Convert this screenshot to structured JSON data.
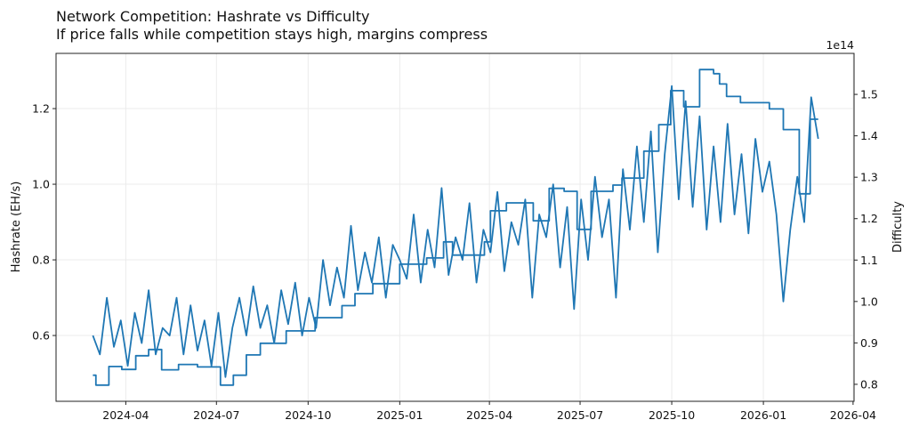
{
  "chart_data": {
    "type": "line",
    "title": "Network Competition: Hashrate vs Difficulty",
    "subtitle": "If price falls while competition stays high, margins compress",
    "xlabel": "",
    "ylabel": "Hashrate (EH/s)",
    "y2label": "Difficulty",
    "y2_offset_text": "1e14",
    "xlim": [
      "2024-01-22",
      "2026-04-02"
    ],
    "ylim": [
      0.426,
      1.346
    ],
    "y2lim": [
      0.759,
      1.599
    ],
    "grid": true,
    "color": "#1f77b4",
    "x_ticks": [
      "2024-04",
      "2024-07",
      "2024-10",
      "2025-01",
      "2025-04",
      "2025-07",
      "2025-10",
      "2026-01",
      "2026-04"
    ],
    "y_ticks": [
      "0.6",
      "0.8",
      "1.0",
      "1.2"
    ],
    "y2_ticks": [
      "0.8",
      "0.9",
      "1.0",
      "1.1",
      "1.2",
      "1.3",
      "1.4",
      "1.5"
    ],
    "series": [
      {
        "axis": "left",
        "style": "line",
        "x": [
          "2024-02-28",
          "2024-03-06",
          "2024-03-13",
          "2024-03-20",
          "2024-03-27",
          "2024-04-03",
          "2024-04-10",
          "2024-04-17",
          "2024-04-24",
          "2024-05-01",
          "2024-05-08",
          "2024-05-15",
          "2024-05-22",
          "2024-05-29",
          "2024-06-05",
          "2024-06-12",
          "2024-06-19",
          "2024-06-26",
          "2024-07-03",
          "2024-07-10",
          "2024-07-17",
          "2024-07-24",
          "2024-07-31",
          "2024-08-07",
          "2024-08-14",
          "2024-08-21",
          "2024-08-28",
          "2024-09-04",
          "2024-09-11",
          "2024-09-18",
          "2024-09-25",
          "2024-10-02",
          "2024-10-09",
          "2024-10-16",
          "2024-10-23",
          "2024-10-30",
          "2024-11-06",
          "2024-11-13",
          "2024-11-20",
          "2024-11-27",
          "2024-12-04",
          "2024-12-11",
          "2024-12-18",
          "2024-12-25",
          "2025-01-01",
          "2025-01-08",
          "2025-01-15",
          "2025-01-22",
          "2025-01-29",
          "2025-02-05",
          "2025-02-12",
          "2025-02-19",
          "2025-02-26",
          "2025-03-05",
          "2025-03-12",
          "2025-03-19",
          "2025-03-26",
          "2025-04-02",
          "2025-04-09",
          "2025-04-16",
          "2025-04-23",
          "2025-04-30",
          "2025-05-07",
          "2025-05-14",
          "2025-05-21",
          "2025-05-28",
          "2025-06-04",
          "2025-06-11",
          "2025-06-18",
          "2025-06-25",
          "2025-07-02",
          "2025-07-09",
          "2025-07-16",
          "2025-07-23",
          "2025-07-30",
          "2025-08-06",
          "2025-08-13",
          "2025-08-20",
          "2025-08-27",
          "2025-09-03",
          "2025-09-10",
          "2025-09-17",
          "2025-09-24",
          "2025-10-01",
          "2025-10-08",
          "2025-10-15",
          "2025-10-22",
          "2025-10-29",
          "2025-11-05",
          "2025-11-12",
          "2025-11-19",
          "2025-11-26",
          "2025-12-03",
          "2025-12-10",
          "2025-12-17",
          "2025-12-24",
          "2025-12-31",
          "2026-01-07",
          "2026-01-14",
          "2026-01-21",
          "2026-01-28",
          "2026-02-04",
          "2026-02-11",
          "2026-02-18",
          "2026-02-25"
        ],
        "y": [
          0.6,
          0.55,
          0.7,
          0.57,
          0.64,
          0.52,
          0.66,
          0.58,
          0.72,
          0.55,
          0.62,
          0.6,
          0.7,
          0.55,
          0.68,
          0.56,
          0.64,
          0.52,
          0.66,
          0.49,
          0.62,
          0.7,
          0.6,
          0.73,
          0.62,
          0.68,
          0.58,
          0.72,
          0.63,
          0.74,
          0.6,
          0.7,
          0.62,
          0.8,
          0.68,
          0.78,
          0.7,
          0.89,
          0.72,
          0.82,
          0.74,
          0.86,
          0.7,
          0.84,
          0.8,
          0.75,
          0.92,
          0.74,
          0.88,
          0.78,
          0.99,
          0.76,
          0.86,
          0.8,
          0.95,
          0.74,
          0.88,
          0.82,
          0.98,
          0.77,
          0.9,
          0.84,
          0.96,
          0.7,
          0.92,
          0.86,
          1.0,
          0.78,
          0.94,
          0.67,
          0.96,
          0.8,
          1.02,
          0.86,
          0.96,
          0.7,
          1.04,
          0.88,
          1.1,
          0.9,
          1.14,
          0.82,
          1.08,
          1.26,
          0.96,
          1.22,
          0.94,
          1.18,
          0.88,
          1.1,
          0.9,
          1.16,
          0.92,
          1.08,
          0.87,
          1.12,
          0.98,
          1.06,
          0.92,
          0.69,
          0.88,
          1.02,
          0.9,
          1.23,
          1.12
        ]
      },
      {
        "axis": "right",
        "style": "step",
        "x": [
          "2024-02-28",
          "2024-03-02",
          "2024-03-15",
          "2024-03-28",
          "2024-04-11",
          "2024-04-24",
          "2024-05-07",
          "2024-05-24",
          "2024-06-12",
          "2024-07-05",
          "2024-07-18",
          "2024-07-31",
          "2024-08-14",
          "2024-09-09",
          "2024-10-08",
          "2024-11-04",
          "2024-11-17",
          "2024-12-05",
          "2025-01-01",
          "2025-01-28",
          "2025-02-14",
          "2025-02-23",
          "2025-03-27",
          "2025-04-02",
          "2025-04-18",
          "2025-05-15",
          "2025-05-31",
          "2025-06-15",
          "2025-06-28",
          "2025-07-12",
          "2025-08-03",
          "2025-08-12",
          "2025-09-03",
          "2025-09-18",
          "2025-09-30",
          "2025-10-13",
          "2025-10-29",
          "2025-11-12",
          "2025-11-18",
          "2025-11-25",
          "2025-12-09",
          "2026-01-07",
          "2026-01-21",
          "2026-02-06",
          "2026-02-17",
          "2026-02-25"
        ],
        "y": [
          0.822,
          0.798,
          0.843,
          0.836,
          0.869,
          0.884,
          0.835,
          0.848,
          0.842,
          0.798,
          0.822,
          0.871,
          0.899,
          0.929,
          0.961,
          0.99,
          1.019,
          1.043,
          1.09,
          1.105,
          1.144,
          1.112,
          1.144,
          1.219,
          1.238,
          1.195,
          1.273,
          1.266,
          1.174,
          1.266,
          1.281,
          1.298,
          1.363,
          1.427,
          1.509,
          1.47,
          1.56,
          1.55,
          1.525,
          1.495,
          1.48,
          1.465,
          1.415,
          1.26,
          1.44,
          1.44
        ]
      }
    ]
  }
}
